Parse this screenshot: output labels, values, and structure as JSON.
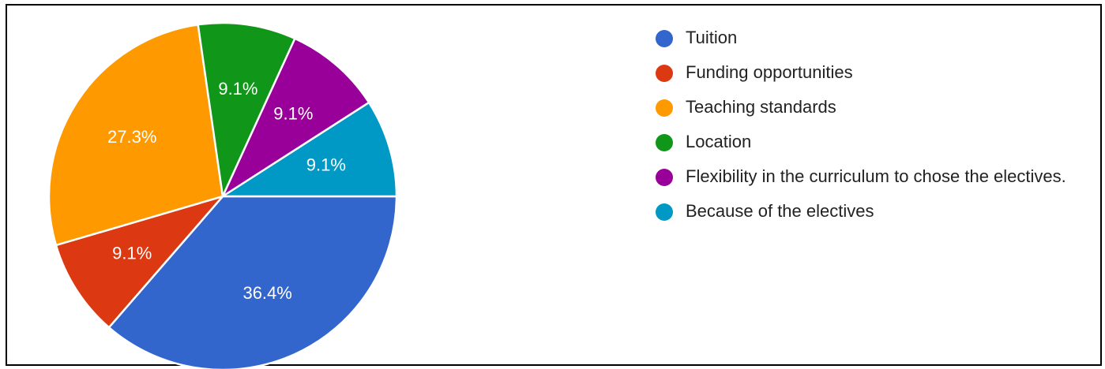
{
  "chart_data": {
    "type": "pie",
    "slices": [
      {
        "label": "Tuition",
        "value": 36.4,
        "display": "36.4%",
        "color": "#3366cc"
      },
      {
        "label": "Funding opportunities",
        "value": 9.1,
        "display": "9.1%",
        "color": "#dc3912"
      },
      {
        "label": "Teaching standards",
        "value": 27.3,
        "display": "27.3%",
        "color": "#ff9900"
      },
      {
        "label": "Location",
        "value": 9.1,
        "display": "9.1%",
        "color": "#109618"
      },
      {
        "label": "Flexibility in the curriculum to chose the electives.",
        "value": 9.1,
        "display": "9.1%",
        "color": "#990099"
      },
      {
        "label": "Because of the electives",
        "value": 9.1,
        "display": "9.1%",
        "color": "#0099c6"
      }
    ],
    "start_angle_deg": 90,
    "direction": "clockwise",
    "legend_position": "right"
  }
}
